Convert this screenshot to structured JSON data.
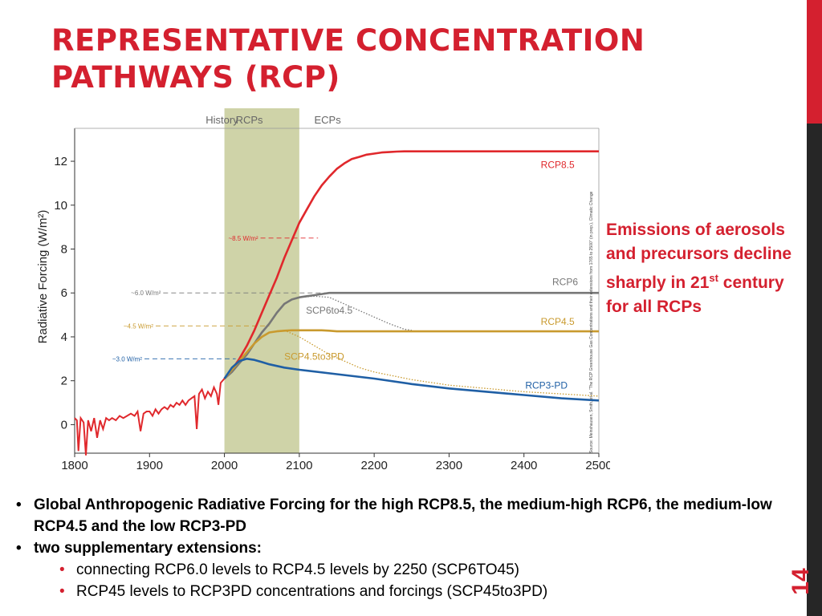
{
  "slide": {
    "title_line1": "REPRESENTATIVE CONCENTRATION",
    "title_line2": "PATHWAYS (RCP)",
    "page_number": "14",
    "note_pre": "Emissions of aerosols and precursors decline sharply in 21",
    "note_sup": "st",
    "note_post": " century for all RCPs",
    "bullets": {
      "b1": "Global Anthropogenic Radiative Forcing for the high RCP8.5, the medium-high RCP6, the medium-low RCP4.5 and the low RCP3-PD",
      "b2": "two supplementary extensions:",
      "b2a": "connecting RCP6.0 levels to RCP4.5 levels by 2250 (SCP6TO45)",
      "b2b": "RCP45 levels to RCP3PD concentrations and forcings (SCP45to3PD)"
    },
    "colors": {
      "accent": "#d4202f",
      "rcp85": "#e0282c",
      "rcp6": "#777777",
      "rcp45": "#c99a2e",
      "rcp3pd": "#1f5fa5",
      "shade": "#cfd3a8"
    }
  },
  "chart_data": {
    "type": "line",
    "title": "",
    "xlabel": "",
    "ylabel": "Radiative Forcing (W/m²)",
    "xlim": [
      1800,
      2500
    ],
    "ylim": [
      -1.3,
      13.5
    ],
    "x_ticks": [
      "1800",
      "1900",
      "2000",
      "2100",
      "2200",
      "2300",
      "2400",
      "2500"
    ],
    "y_ticks": [
      "0",
      "2",
      "4",
      "6",
      "8",
      "10",
      "12"
    ],
    "periods": [
      {
        "label": "History",
        "from": 1800,
        "to": 2005
      },
      {
        "label": "RCPs",
        "from": 2000,
        "to": 2100
      },
      {
        "label": "ECPs",
        "from": 2100,
        "to": 2500
      }
    ],
    "source_note": "Source: Meinshausen, Smith, et al. \"The RCP Greenhouse Gas Concentrations and their extensions from 1765 to 2500\" (in prep.), Climatic Change",
    "reference_levels": [
      {
        "label": "~8.5 W/m²",
        "value": 8.5,
        "color": "#e0282c",
        "from": 2000,
        "to": 2125
      },
      {
        "label": "~6.0 W/m²",
        "value": 6.0,
        "color": "#777777",
        "from": 1870,
        "to": 2140
      },
      {
        "label": "~4.5 W/m²",
        "value": 4.5,
        "color": "#c99a2e",
        "from": 1860,
        "to": 2060
      },
      {
        "label": "~3.0 W/m²",
        "value": 3.0,
        "color": "#1f5fa5",
        "from": 1845,
        "to": 2015
      }
    ],
    "history": {
      "name": "History",
      "color": "#e0282c",
      "x": [
        1800,
        1803,
        1805,
        1808,
        1812,
        1815,
        1818,
        1822,
        1826,
        1830,
        1834,
        1838,
        1842,
        1846,
        1850,
        1855,
        1860,
        1865,
        1870,
        1875,
        1880,
        1884,
        1888,
        1892,
        1896,
        1900,
        1904,
        1908,
        1912,
        1916,
        1920,
        1924,
        1928,
        1932,
        1936,
        1940,
        1944,
        1948,
        1952,
        1956,
        1960,
        1963,
        1966,
        1970,
        1974,
        1978,
        1982,
        1986,
        1990,
        1992,
        1995,
        2000
      ],
      "y": [
        0.3,
        0.2,
        -1.2,
        0.3,
        0.1,
        -1.4,
        0.2,
        -0.3,
        0.3,
        -0.6,
        0.2,
        -0.2,
        0.3,
        0.2,
        0.3,
        0.2,
        0.4,
        0.3,
        0.4,
        0.5,
        0.4,
        0.6,
        -0.3,
        0.5,
        0.6,
        0.6,
        0.4,
        0.7,
        0.5,
        0.7,
        0.8,
        0.7,
        0.9,
        0.8,
        1.0,
        0.9,
        1.1,
        0.9,
        1.1,
        1.2,
        1.3,
        -0.2,
        1.4,
        1.6,
        1.2,
        1.5,
        1.3,
        1.7,
        1.4,
        0.9,
        1.9,
        2.1
      ]
    },
    "series": [
      {
        "name": "RCP8.5",
        "color": "#e0282c",
        "style": "solid",
        "x": [
          2000,
          2010,
          2020,
          2030,
          2040,
          2050,
          2060,
          2070,
          2080,
          2090,
          2100,
          2110,
          2120,
          2130,
          2140,
          2150,
          2160,
          2170,
          2180,
          2190,
          2200,
          2210,
          2220,
          2230,
          2240,
          2250,
          2300,
          2400,
          2500
        ],
        "y": [
          2.1,
          2.5,
          3.0,
          3.6,
          4.3,
          5.1,
          5.9,
          6.7,
          7.6,
          8.4,
          9.2,
          9.8,
          10.4,
          10.9,
          11.3,
          11.65,
          11.9,
          12.1,
          12.2,
          12.3,
          12.35,
          12.4,
          12.42,
          12.44,
          12.45,
          12.45,
          12.45,
          12.45,
          12.45
        ]
      },
      {
        "name": "RCP6",
        "color": "#777777",
        "style": "solid",
        "x": [
          2000,
          2010,
          2020,
          2030,
          2040,
          2050,
          2060,
          2070,
          2080,
          2090,
          2100,
          2110,
          2120,
          2130,
          2140,
          2150,
          2200,
          2300,
          2400,
          2500
        ],
        "y": [
          2.1,
          2.4,
          2.8,
          3.2,
          3.7,
          4.2,
          4.6,
          5.1,
          5.5,
          5.7,
          5.8,
          5.85,
          5.9,
          5.95,
          6.0,
          6.0,
          6.0,
          6.0,
          6.0,
          6.0
        ]
      },
      {
        "name": "SCP6to4.5",
        "color": "#777777",
        "style": "dotted",
        "x": [
          2100,
          2120,
          2140,
          2160,
          2180,
          2200,
          2220,
          2240,
          2250
        ],
        "y": [
          5.8,
          5.85,
          5.8,
          5.5,
          5.2,
          4.9,
          4.6,
          4.35,
          4.3
        ]
      },
      {
        "name": "RCP4.5",
        "color": "#c99a2e",
        "style": "solid",
        "x": [
          2000,
          2010,
          2020,
          2030,
          2040,
          2050,
          2060,
          2070,
          2080,
          2090,
          2100,
          2110,
          2120,
          2130,
          2140,
          2150,
          2200,
          2300,
          2400,
          2500
        ],
        "y": [
          2.1,
          2.5,
          2.9,
          3.3,
          3.7,
          4.0,
          4.2,
          4.25,
          4.28,
          4.3,
          4.3,
          4.3,
          4.3,
          4.3,
          4.28,
          4.25,
          4.25,
          4.25,
          4.25,
          4.25
        ]
      },
      {
        "name": "SCP4.5to3PD",
        "color": "#c99a2e",
        "style": "dotted",
        "x": [
          2080,
          2100,
          2120,
          2140,
          2160,
          2180,
          2200,
          2250,
          2300,
          2350,
          2400,
          2450,
          2500
        ],
        "y": [
          4.3,
          4.0,
          3.6,
          3.2,
          2.9,
          2.6,
          2.4,
          2.05,
          1.8,
          1.65,
          1.5,
          1.4,
          1.3
        ]
      },
      {
        "name": "RCP3-PD",
        "color": "#1f5fa5",
        "style": "solid",
        "x": [
          2000,
          2010,
          2020,
          2030,
          2040,
          2050,
          2060,
          2080,
          2100,
          2150,
          2200,
          2250,
          2300,
          2350,
          2400,
          2450,
          2500
        ],
        "y": [
          2.1,
          2.6,
          2.9,
          3.0,
          2.95,
          2.85,
          2.75,
          2.6,
          2.5,
          2.3,
          2.1,
          1.85,
          1.65,
          1.5,
          1.35,
          1.2,
          1.1
        ]
      }
    ],
    "series_labels": [
      {
        "text": "RCP8.5",
        "x": 2445,
        "y": 11.7
      },
      {
        "text": "RCP6",
        "x": 2455,
        "y": 6.35
      },
      {
        "text": "SCP6to4.5",
        "x": 2140,
        "y": 5.05
      },
      {
        "text": "RCP4.5",
        "x": 2445,
        "y": 4.55
      },
      {
        "text": "SCP4.5to3PD",
        "x": 2120,
        "y": 2.95
      },
      {
        "text": "RCP3-PD",
        "x": 2430,
        "y": 1.65
      }
    ]
  }
}
